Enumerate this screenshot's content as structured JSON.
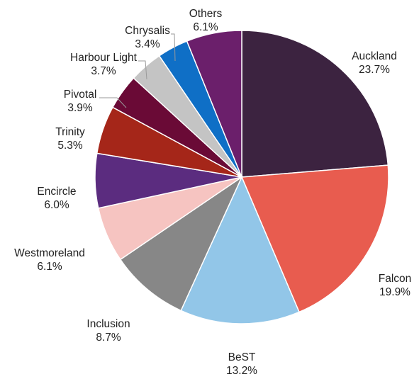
{
  "chart_data": {
    "type": "pie",
    "title": "",
    "start": "12 o'clock",
    "direction": "clockwise",
    "slices": [
      {
        "label": "Auckland",
        "value": 23.7,
        "display": "23.7%",
        "color": "#3C2340"
      },
      {
        "label": "Falcon",
        "value": 19.9,
        "display": "19.9%",
        "color": "#E85C4F"
      },
      {
        "label": "BeST",
        "value": 13.2,
        "display": "13.2%",
        "color": "#92C6E8"
      },
      {
        "label": "Inclusion",
        "value": 8.7,
        "display": "8.7%",
        "color": "#878787"
      },
      {
        "label": "Westmoreland",
        "value": 6.1,
        "display": "6.1%",
        "color": "#F6C4C1"
      },
      {
        "label": "Encircle",
        "value": 6.0,
        "display": "6.0%",
        "color": "#5B2C7F"
      },
      {
        "label": "Trinity",
        "value": 5.3,
        "display": "5.3%",
        "color": "#A52619"
      },
      {
        "label": "Pivotal",
        "value": 3.9,
        "display": "3.9%",
        "color": "#6A0A36"
      },
      {
        "label": "Harbour Light",
        "value": 3.7,
        "display": "3.7%",
        "color": "#C4C4C4"
      },
      {
        "label": "Chrysalis",
        "value": 3.4,
        "display": "3.4%",
        "color": "#0F6FC6"
      },
      {
        "label": "Others",
        "value": 6.1,
        "display": "6.1%",
        "color": "#6B1F6B"
      }
    ]
  }
}
